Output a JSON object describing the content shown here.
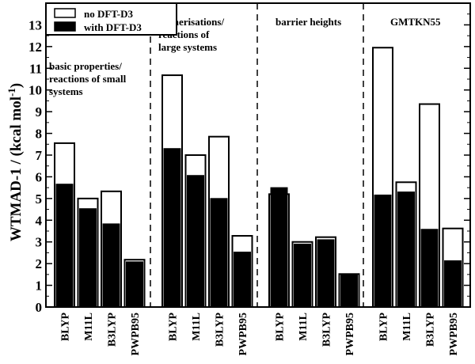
{
  "chart_data": {
    "type": "bar",
    "ylabel": "WTMAD-1 / (kcal mol",
    "ylabel_sup": "-1",
    "ylabel_close": ")",
    "ylim": [
      0,
      14
    ],
    "yticks": [
      0,
      1,
      2,
      3,
      4,
      5,
      6,
      7,
      8,
      9,
      10,
      11,
      12,
      13
    ],
    "legend": {
      "position": "top-left",
      "entries": [
        {
          "label": "no DFT-D3",
          "fill": "#ffffff"
        },
        {
          "label": "with DFT-D3",
          "fill": "#000000"
        }
      ]
    },
    "groups": [
      {
        "title_lines": [
          "basic properties/",
          "reactions of small",
          "systems"
        ],
        "categories": [
          "BLYP",
          "M11L",
          "B3LYP",
          "PWPB95"
        ],
        "series": [
          {
            "name": "no DFT-D3",
            "values": [
              7.55,
              5.0,
              5.33,
              2.18
            ]
          },
          {
            "name": "with DFT-D3",
            "values": [
              5.68,
              4.55,
              3.85,
              2.1
            ]
          }
        ]
      },
      {
        "title_lines": [
          "isomerisations/",
          "reactions of",
          "large systems"
        ],
        "categories": [
          "BLYP",
          "M11L",
          "B3LYP",
          "PWPB95"
        ],
        "series": [
          {
            "name": "no DFT-D3",
            "values": [
              10.68,
              7.0,
              7.85,
              3.28
            ]
          },
          {
            "name": "with DFT-D3",
            "values": [
              7.32,
              6.08,
              5.02,
              2.55
            ]
          }
        ]
      },
      {
        "title_lines": [
          "barrier heights"
        ],
        "categories": [
          "BLYP",
          "M11L",
          "B3LYP",
          "PWPB95"
        ],
        "series": [
          {
            "name": "no DFT-D3",
            "values": [
              5.2,
              3.0,
              3.22,
              1.52
            ]
          },
          {
            "name": "with DFT-D3",
            "values": [
              5.52,
              2.92,
              3.12,
              1.5
            ]
          }
        ]
      },
      {
        "title_lines": [
          "GMTKN55"
        ],
        "categories": [
          "BLYP",
          "M11L",
          "B3LYP",
          "PWPB95"
        ],
        "series": [
          {
            "name": "no DFT-D3",
            "values": [
              11.95,
              5.75,
              9.35,
              3.62
            ]
          },
          {
            "name": "with DFT-D3",
            "values": [
              5.18,
              5.32,
              3.6,
              2.15
            ]
          }
        ]
      }
    ],
    "grid": false,
    "colors": {
      "bar_outline": "#000000",
      "unfilled": "#ffffff",
      "filled": "#000000"
    }
  }
}
